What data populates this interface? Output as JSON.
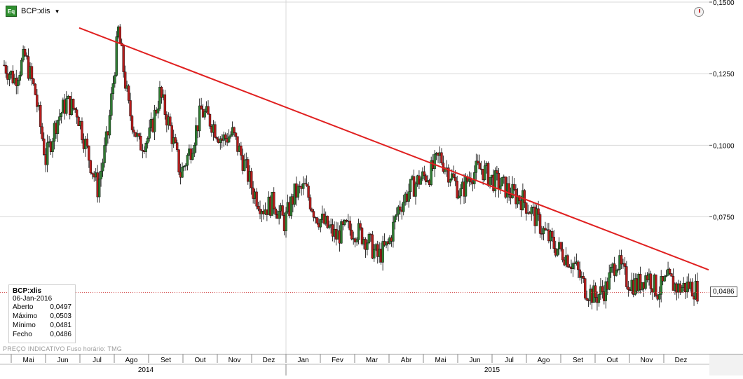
{
  "header": {
    "symbol": "BCP:xlis",
    "icon_label": "Eq"
  },
  "info_box": {
    "title": "BCP:xlis",
    "date": "06-Jan-2016",
    "rows": [
      {
        "label": "Aberto",
        "value": "0,0497"
      },
      {
        "label": "Máximo",
        "value": "0,0503"
      },
      {
        "label": "Mínimo",
        "value": "0,0481"
      },
      {
        "label": "Fecho",
        "value": "0,0486"
      }
    ]
  },
  "footer": {
    "note": "PREÇO INDICATIVO    Fuso horário: TMG"
  },
  "last_price_label": "0,0486",
  "chart_data": {
    "type": "candlestick",
    "y_ticks": [
      "0,1500",
      "0,1250",
      "0,1000",
      "0,0750"
    ],
    "ylim": [
      0.035,
      0.15
    ],
    "months": [
      "Mai",
      "Jun",
      "Jul",
      "Ago",
      "Set",
      "Out",
      "Nov",
      "Dez",
      "Jan",
      "Fev",
      "Mar",
      "Abr",
      "Mai",
      "Jun",
      "Jul",
      "Ago",
      "Set",
      "Out",
      "Nov",
      "Dez"
    ],
    "years": [
      "2014",
      "2015"
    ],
    "last": {
      "date": "06-Jan-2016",
      "open": 0.0497,
      "high": 0.0503,
      "low": 0.0481,
      "close": 0.0486
    },
    "trendline": {
      "start": {
        "date": "2014-06-27",
        "value": 0.141
      },
      "end": {
        "date": "2016-01-08",
        "value": 0.0565
      },
      "color": "#e02020"
    },
    "closes_approx": [
      0.128,
      0.123,
      0.131,
      0.118,
      0.095,
      0.108,
      0.115,
      0.112,
      0.098,
      0.085,
      0.104,
      0.14,
      0.113,
      0.1,
      0.103,
      0.118,
      0.106,
      0.09,
      0.099,
      0.112,
      0.108,
      0.102,
      0.104,
      0.095,
      0.084,
      0.078,
      0.08,
      0.073,
      0.083,
      0.085,
      0.076,
      0.072,
      0.068,
      0.071,
      0.07,
      0.067,
      0.061,
      0.065,
      0.078,
      0.084,
      0.088,
      0.09,
      0.096,
      0.09,
      0.083,
      0.09,
      0.092,
      0.088,
      0.086,
      0.083,
      0.081,
      0.076,
      0.07,
      0.065,
      0.062,
      0.058,
      0.05,
      0.047,
      0.05,
      0.06,
      0.053,
      0.051,
      0.055,
      0.049,
      0.053,
      0.05,
      0.051,
      0.049
    ],
    "colors": {
      "up": "#2e7d32",
      "down": "#b71c1c",
      "wick": "#000000",
      "grid": "#d9d9d9"
    }
  }
}
